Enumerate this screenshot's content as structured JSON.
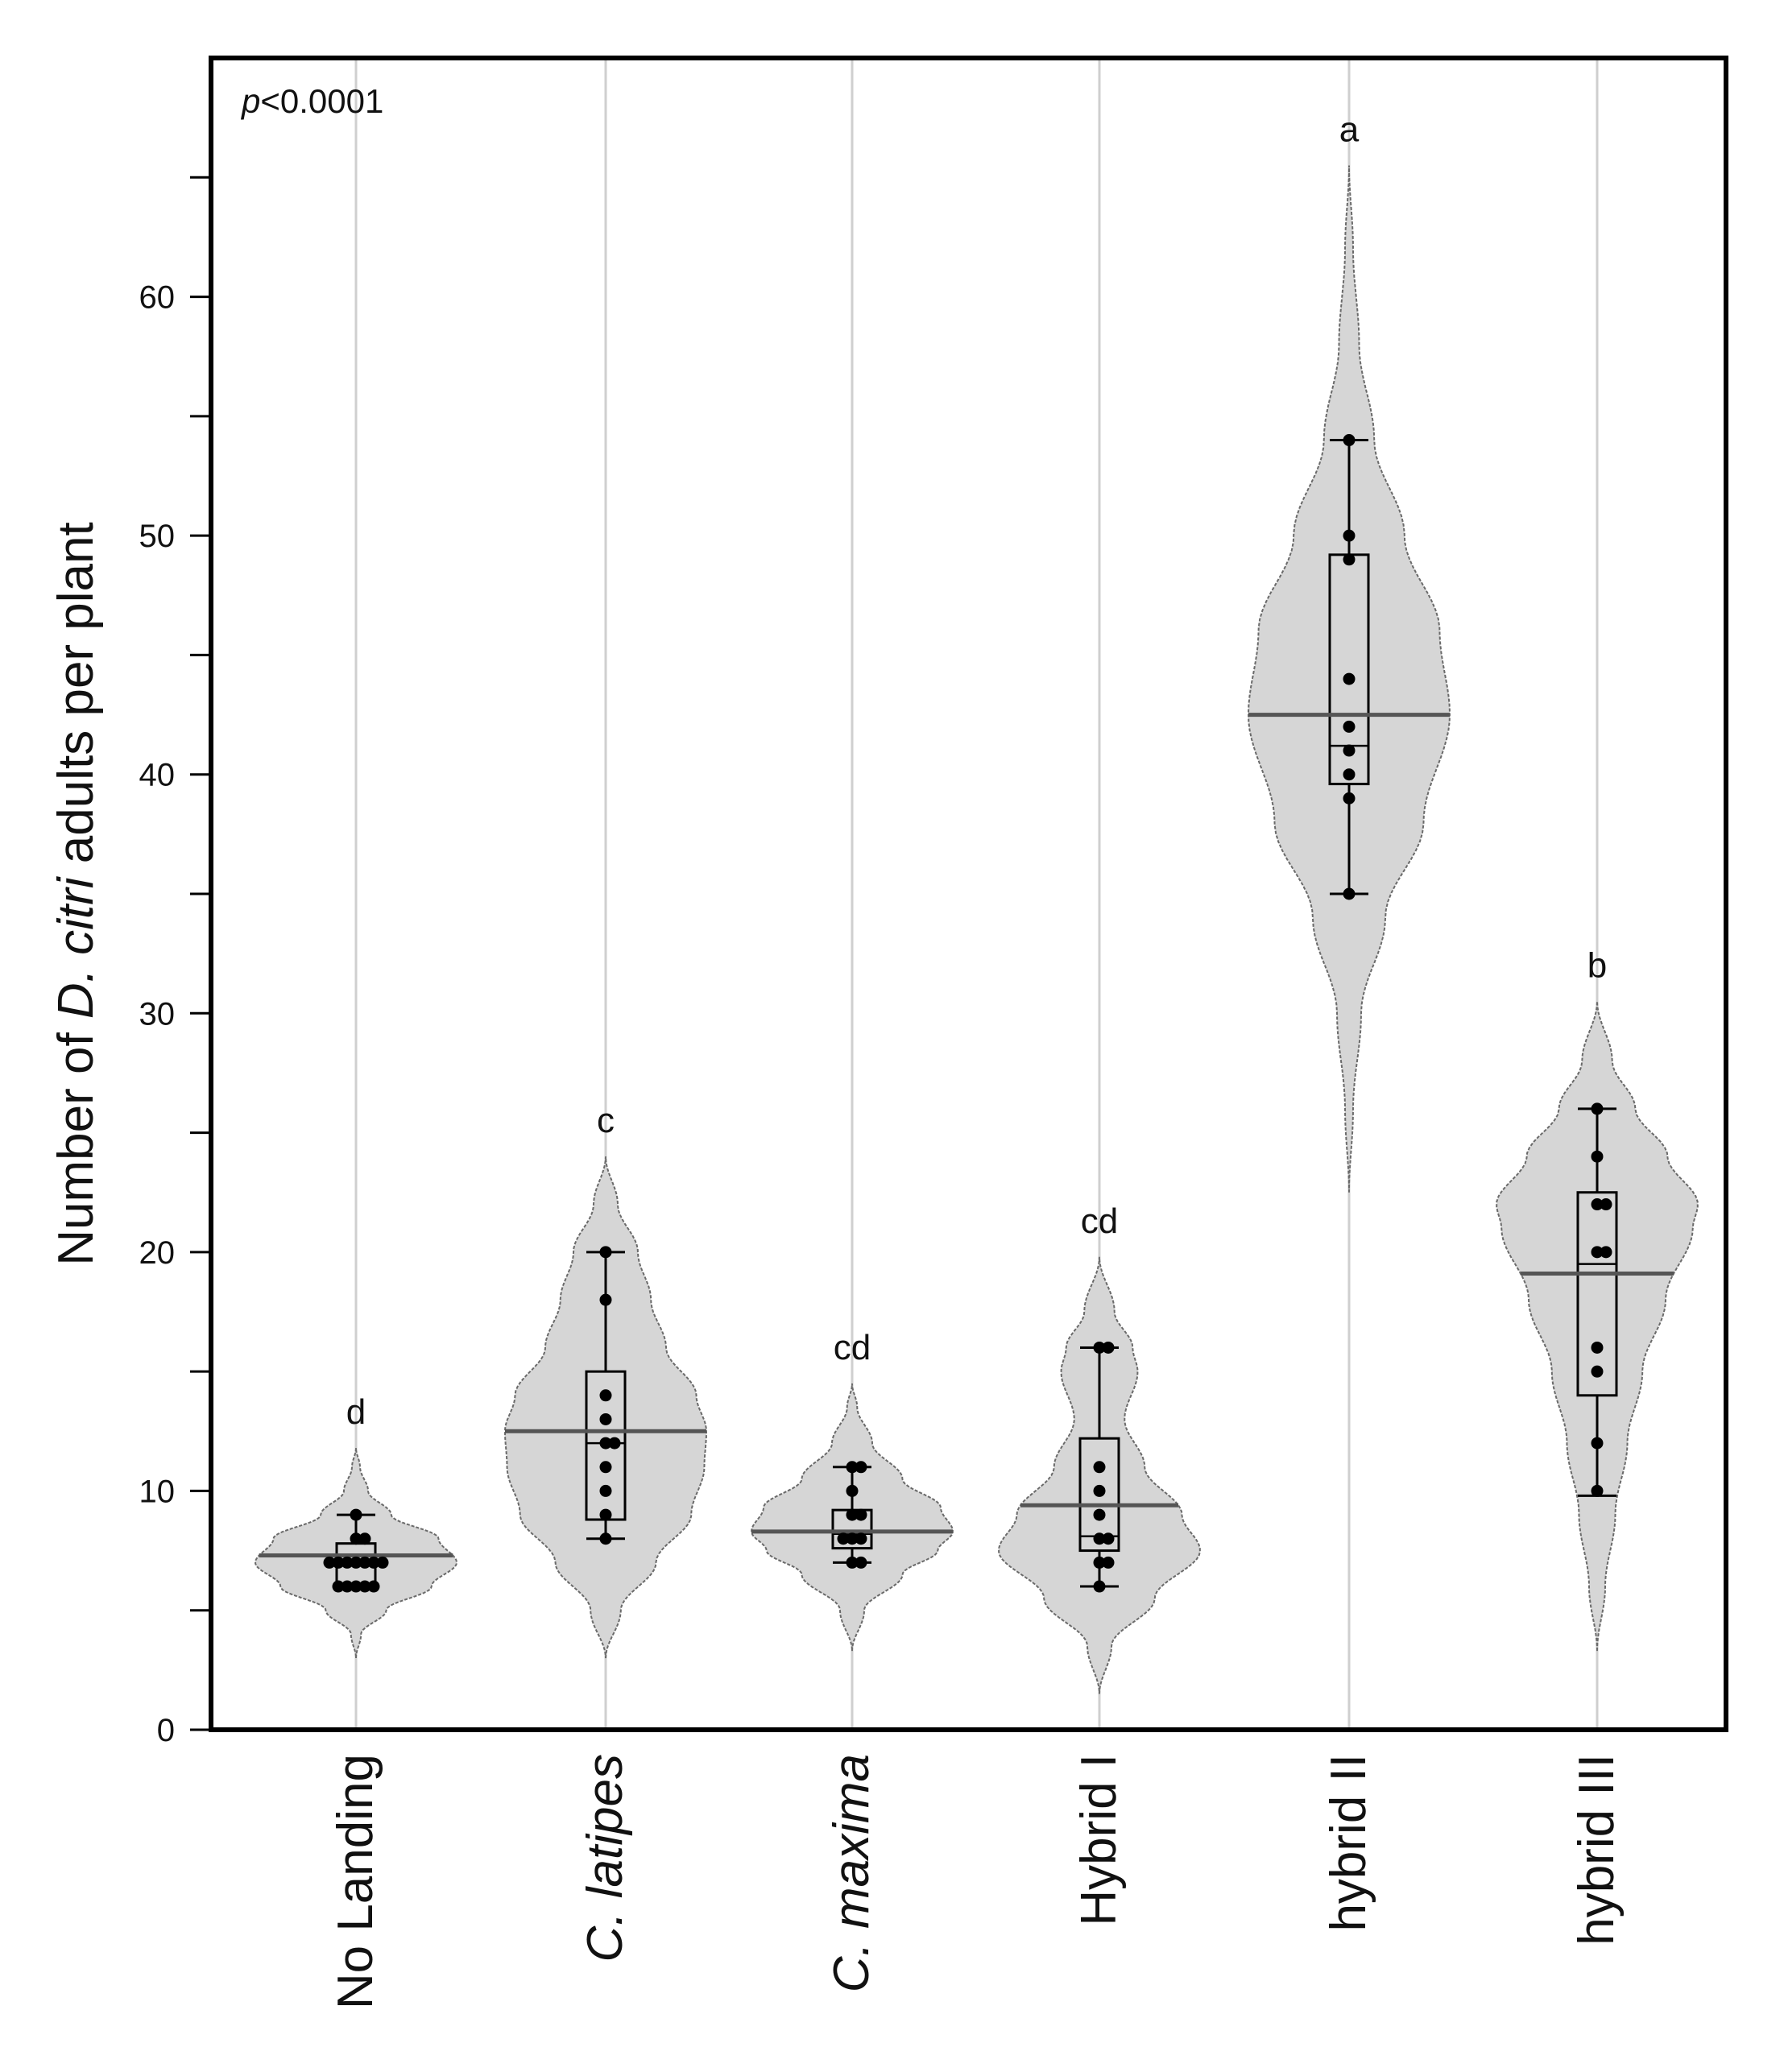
{
  "chart_data": {
    "type": "violin",
    "title": "",
    "annotation": {
      "p_italic": "p",
      "p_rest": "<0.0001"
    },
    "ylabel": {
      "pre": "Number of ",
      "italic": "D. citri",
      "post": " adults per plant"
    },
    "xlabel": "",
    "ylim": [
      0,
      70
    ],
    "yticks": [
      0,
      10,
      20,
      30,
      40,
      50,
      60
    ],
    "grid": "vertical",
    "categories": [
      {
        "label": "No Landing",
        "italic": false
      },
      {
        "label": "C. latipes",
        "italic": true
      },
      {
        "label": "C. maxima",
        "italic": true
      },
      {
        "label": "Hybrid I",
        "italic": false
      },
      {
        "label": "hybrid II",
        "italic": false
      },
      {
        "label": "hybrid III",
        "italic": false
      }
    ],
    "groups": [
      {
        "name": "No Landing",
        "letter": "d",
        "points": [
          6,
          6,
          6,
          6,
          6,
          7,
          7,
          7,
          7,
          7,
          7,
          7,
          8,
          8,
          9
        ],
        "box": {
          "q1": 6,
          "median": 7,
          "q3": 7.8,
          "whisker_low": 6,
          "whisker_high": 9
        },
        "mean": 7.3,
        "violin": {
          "min": 3,
          "max": 11.8,
          "profile": [
            [
              3,
              0
            ],
            [
              4,
              0.05
            ],
            [
              5,
              0.3
            ],
            [
              6,
              0.75
            ],
            [
              7,
              1
            ],
            [
              8,
              0.82
            ],
            [
              9,
              0.35
            ],
            [
              10,
              0.12
            ],
            [
              11,
              0.04
            ],
            [
              11.8,
              0
            ]
          ]
        }
      },
      {
        "name": "C. latipes",
        "letter": "c",
        "points": [
          8,
          9,
          10,
          11,
          12,
          12,
          13,
          14,
          18,
          20
        ],
        "box": {
          "q1": 8.8,
          "median": 12,
          "q3": 15,
          "whisker_low": 8,
          "whisker_high": 20
        },
        "mean": 12.5,
        "violin": {
          "min": 3,
          "max": 24,
          "profile": [
            [
              3,
              0
            ],
            [
              5,
              0.15
            ],
            [
              7,
              0.5
            ],
            [
              9,
              0.85
            ],
            [
              11,
              0.98
            ],
            [
              12.5,
              1
            ],
            [
              14,
              0.9
            ],
            [
              16,
              0.6
            ],
            [
              18,
              0.45
            ],
            [
              20,
              0.32
            ],
            [
              22,
              0.12
            ],
            [
              24,
              0
            ]
          ]
        }
      },
      {
        "name": "C. maxima",
        "letter": "cd",
        "points": [
          7,
          7,
          8,
          8,
          8,
          9,
          9,
          10,
          11,
          11
        ],
        "box": {
          "q1": 7.6,
          "median": 8.2,
          "q3": 9.2,
          "whisker_low": 7,
          "whisker_high": 11
        },
        "mean": 8.3,
        "violin": {
          "min": 3.3,
          "max": 14.5,
          "profile": [
            [
              3.3,
              0
            ],
            [
              5,
              0.12
            ],
            [
              6.5,
              0.5
            ],
            [
              7.5,
              0.85
            ],
            [
              8.3,
              1
            ],
            [
              9.3,
              0.88
            ],
            [
              10.5,
              0.5
            ],
            [
              12,
              0.2
            ],
            [
              13.5,
              0.05
            ],
            [
              14.5,
              0
            ]
          ]
        }
      },
      {
        "name": "Hybrid I",
        "letter": "cd",
        "points": [
          6,
          7,
          7,
          8,
          8,
          9,
          10,
          11,
          16,
          16
        ],
        "box": {
          "q1": 7.5,
          "median": 8.1,
          "q3": 12.2,
          "whisker_low": 6,
          "whisker_high": 16
        },
        "mean": 9.4,
        "violin": {
          "min": 1.5,
          "max": 19.8,
          "profile": [
            [
              1.5,
              0
            ],
            [
              3.5,
              0.12
            ],
            [
              5.5,
              0.55
            ],
            [
              7.5,
              1
            ],
            [
              9,
              0.82
            ],
            [
              11,
              0.45
            ],
            [
              13,
              0.25
            ],
            [
              15,
              0.38
            ],
            [
              16,
              0.33
            ],
            [
              17.5,
              0.15
            ],
            [
              19.8,
              0
            ]
          ]
        }
      },
      {
        "name": "hybrid II",
        "letter": "a",
        "points": [
          35,
          39,
          40,
          41,
          42,
          44,
          49,
          50,
          54
        ],
        "box": {
          "q1": 39.6,
          "median": 41.2,
          "q3": 49.2,
          "whisker_low": 35,
          "whisker_high": 54
        },
        "mean": 42.5,
        "violin": {
          "min": 22.5,
          "max": 65.5,
          "profile": [
            [
              22.5,
              0
            ],
            [
              26,
              0.04
            ],
            [
              30,
              0.12
            ],
            [
              34,
              0.36
            ],
            [
              38,
              0.74
            ],
            [
              42.5,
              1
            ],
            [
              46,
              0.9
            ],
            [
              50,
              0.55
            ],
            [
              54,
              0.25
            ],
            [
              58,
              0.1
            ],
            [
              62,
              0.04
            ],
            [
              65.5,
              0
            ]
          ]
        }
      },
      {
        "name": "hybrid III",
        "letter": "b",
        "points": [
          10,
          12,
          15,
          16,
          20,
          20,
          22,
          22,
          24,
          26
        ],
        "box": {
          "q1": 14,
          "median": 19.5,
          "q3": 22.5,
          "whisker_low": 9.8,
          "whisker_high": 26
        },
        "mean": 19.1,
        "violin": {
          "min": 3.3,
          "max": 30.5,
          "profile": [
            [
              3.3,
              0
            ],
            [
              6,
              0.08
            ],
            [
              9,
              0.18
            ],
            [
              12,
              0.3
            ],
            [
              15,
              0.45
            ],
            [
              18,
              0.68
            ],
            [
              21,
              0.95
            ],
            [
              22,
              1
            ],
            [
              24,
              0.7
            ],
            [
              26,
              0.38
            ],
            [
              28,
              0.15
            ],
            [
              30.5,
              0
            ]
          ]
        }
      }
    ]
  }
}
